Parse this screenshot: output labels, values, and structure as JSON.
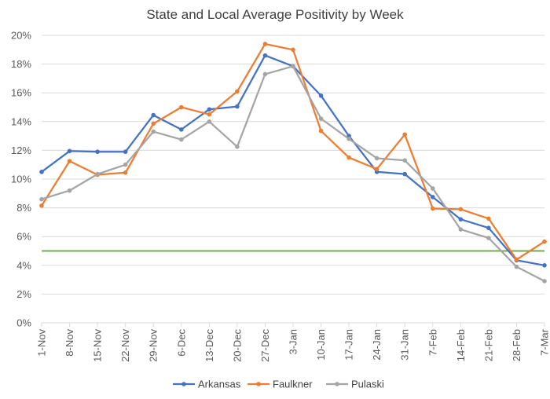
{
  "chart_data": {
    "type": "line",
    "title": "State and Local Average Positivity by Week",
    "xlabel": "",
    "ylabel": "",
    "ylim": [
      0,
      20
    ],
    "y_ticks": [
      "0%",
      "2%",
      "4%",
      "6%",
      "8%",
      "10%",
      "12%",
      "14%",
      "16%",
      "18%",
      "20%"
    ],
    "y_tick_values": [
      0,
      2,
      4,
      6,
      8,
      10,
      12,
      14,
      16,
      18,
      20
    ],
    "categories": [
      "1-Nov",
      "8-Nov",
      "15-Nov",
      "22-Nov",
      "29-Nov",
      "6-Dec",
      "13-Dec",
      "20-Dec",
      "27-Dec",
      "3-Jan",
      "10-Jan",
      "17-Jan",
      "24-Jan",
      "31-Jan",
      "7-Feb",
      "14-Feb",
      "21-Feb",
      "28-Feb",
      "7-Mar"
    ],
    "series": [
      {
        "name": "Arkansas",
        "color": "#4472C4",
        "values": [
          10.5,
          11.95,
          11.9,
          11.9,
          14.45,
          13.45,
          14.85,
          15.05,
          18.6,
          17.85,
          15.8,
          13.0,
          10.5,
          10.35,
          8.75,
          7.2,
          6.6,
          4.35,
          4.0
        ]
      },
      {
        "name": "Faulkner",
        "color": "#ED7D31",
        "values": [
          8.15,
          11.25,
          10.3,
          10.45,
          13.85,
          15.0,
          14.5,
          16.1,
          19.4,
          19.0,
          13.35,
          11.5,
          10.7,
          13.1,
          7.95,
          7.9,
          7.25,
          4.4,
          5.65
        ]
      },
      {
        "name": "Pulaski",
        "color": "#A5A5A5",
        "values": [
          8.6,
          9.2,
          10.35,
          11.0,
          13.3,
          12.75,
          14.0,
          12.25,
          17.3,
          17.85,
          14.2,
          12.8,
          11.45,
          11.3,
          9.35,
          6.5,
          5.9,
          3.9,
          2.9
        ]
      }
    ],
    "reference_line": {
      "value": 5,
      "color": "#70AD47"
    },
    "grid": true,
    "legend_position": "bottom-center"
  }
}
